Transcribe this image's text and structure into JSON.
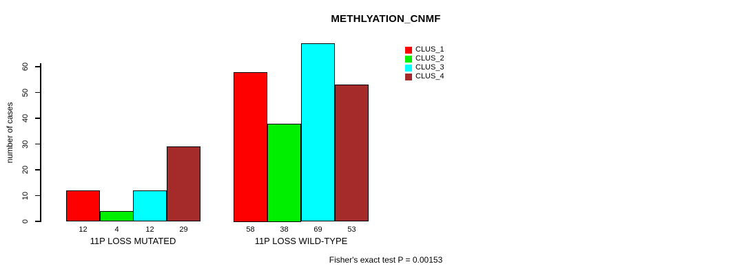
{
  "chart_data": {
    "type": "bar",
    "title": "METHLYATION_CNMF",
    "ylabel": "number of cases",
    "xlabel": "",
    "ylim": [
      0,
      69
    ],
    "yticks": [
      0,
      10,
      20,
      30,
      40,
      50,
      60
    ],
    "categories": [
      "11P LOSS MUTATED",
      "11P LOSS WILD-TYPE"
    ],
    "series": [
      {
        "name": "CLUS_1",
        "color": "#ff0000",
        "values": [
          12,
          58
        ]
      },
      {
        "name": "CLUS_2",
        "color": "#00ee00",
        "values": [
          4,
          38
        ]
      },
      {
        "name": "CLUS_3",
        "color": "#00ffff",
        "values": [
          12,
          69
        ]
      },
      {
        "name": "CLUS_4",
        "color": "#a52a2a",
        "values": [
          29,
          53
        ]
      }
    ],
    "bar_value_labels": [
      [
        12,
        4,
        12,
        29
      ],
      [
        58,
        38,
        69,
        53
      ]
    ],
    "legend_position": "top-right",
    "grid": false,
    "annotation": "Fisher's exact test P = 0.00153"
  }
}
